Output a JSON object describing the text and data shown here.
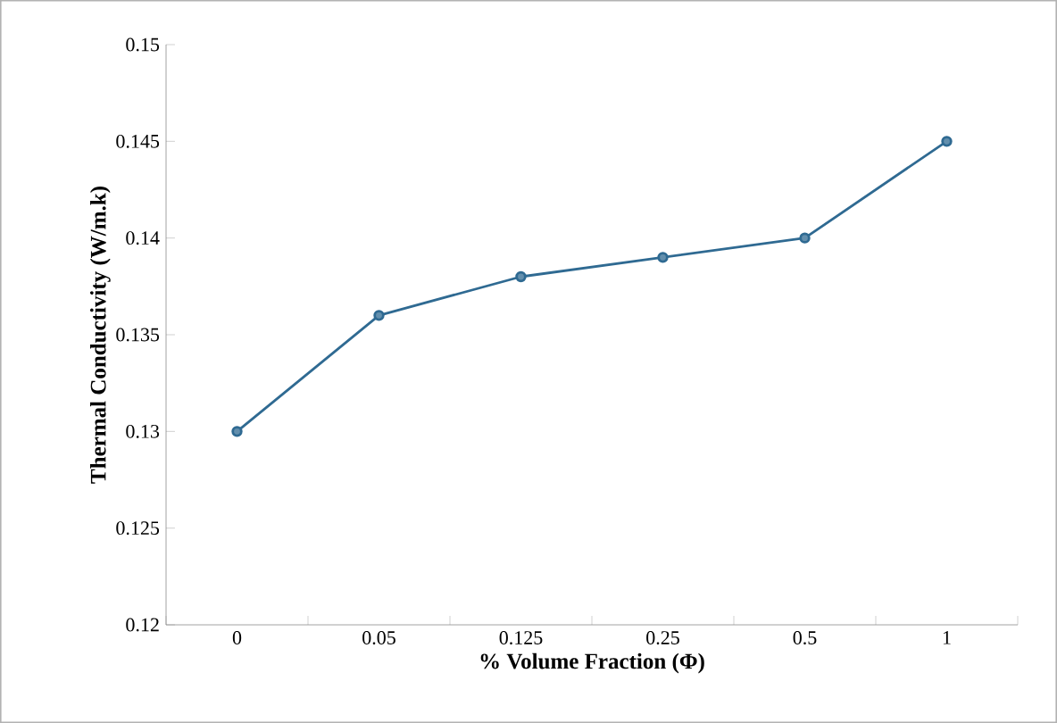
{
  "chart_data": {
    "type": "line",
    "xlabel": "% Volume Fraction (Φ)",
    "ylabel": "Thermal Conductivity (W/m.k)",
    "categories": [
      "0",
      "0.05",
      "0.125",
      "0.25",
      "0.5",
      "1"
    ],
    "series": [
      {
        "color": "#2f6a92",
        "values": [
          0.13,
          0.136,
          0.138,
          0.139,
          0.14,
          0.145
        ]
      }
    ],
    "ylim": [
      0.12,
      0.15
    ],
    "yticks": [
      0.12,
      0.125,
      0.13,
      0.135,
      0.14,
      0.145,
      0.15
    ],
    "grid": false,
    "marker": "circle",
    "line_style": "solid"
  }
}
